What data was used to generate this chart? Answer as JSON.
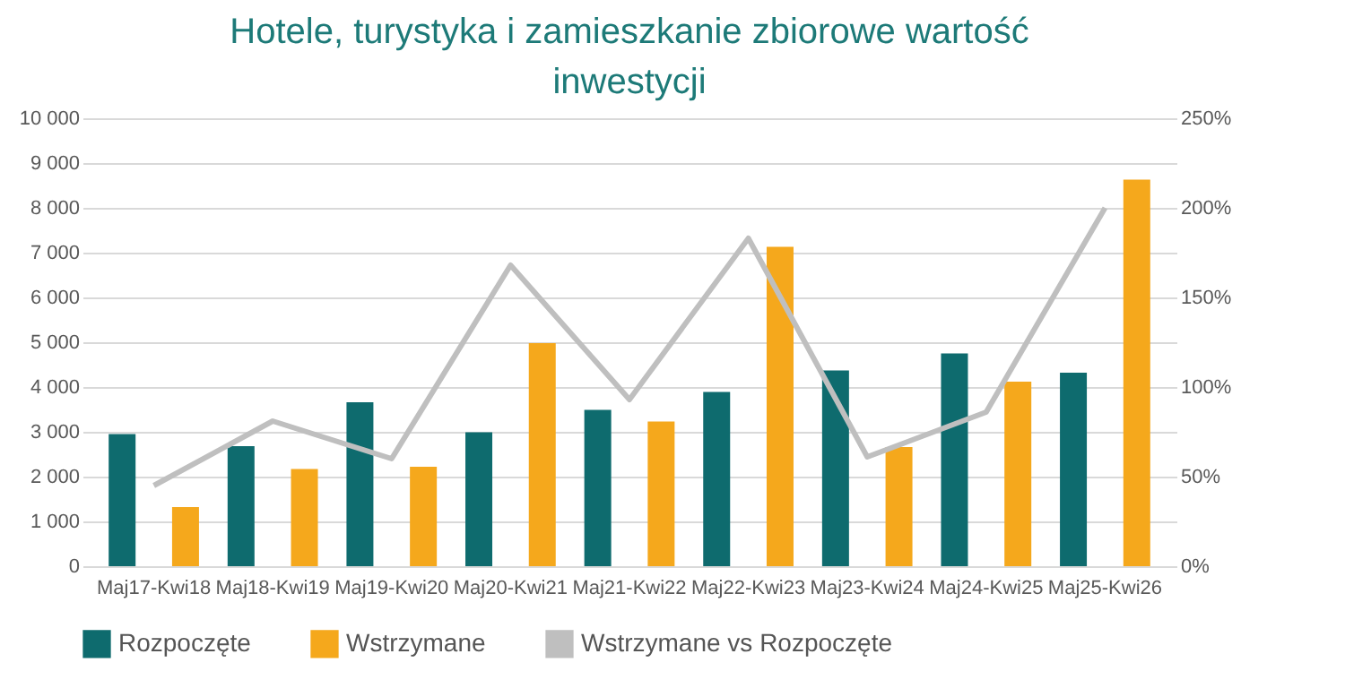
{
  "chart_data": {
    "type": "bar",
    "title": "Hotele, turystyka i zamieszkanie zbiorowe wartość inwestycji",
    "categories": [
      "Maj17-Kwi18",
      "Maj18-Kwi19",
      "Maj19-Kwi20",
      "Maj20-Kwi21",
      "Maj21-Kwi22",
      "Maj22-Kwi23",
      "Maj23-Kwi24",
      "Maj24-Kwi25",
      "Maj25-Kwi26"
    ],
    "series": [
      {
        "name": "Rozpoczęte",
        "color": "#0e6b6e",
        "values": [
          2950,
          2680,
          3660,
          2990,
          3490,
          3890,
          4370,
          4750,
          4320
        ]
      },
      {
        "name": "Wstrzymane",
        "color": "#f5a81c",
        "values": [
          1320,
          2170,
          2220,
          4980,
          3230,
          7130,
          2660,
          4120,
          8630
        ]
      },
      {
        "name": "Wstrzymane vs Rozpoczęte",
        "type": "line",
        "axis": "y2",
        "color": "#bfbfbf",
        "values": [
          45,
          81,
          60,
          168,
          93,
          183,
          61,
          86,
          200
        ]
      }
    ],
    "ylim": [
      0,
      10000
    ],
    "yticks": [
      0,
      {
        "value": 1000,
        "label": "1 000"
      },
      {
        "value": 2000,
        "label": "2 000"
      },
      {
        "value": 3000,
        "label": "3 000"
      },
      {
        "value": 4000,
        "label": "4 000"
      },
      {
        "value": 5000,
        "label": "5 000"
      },
      {
        "value": 6000,
        "label": "6 000"
      },
      {
        "value": 7000,
        "label": "7 000"
      },
      {
        "value": 8000,
        "label": "8 000"
      },
      {
        "value": 9000,
        "label": "9 000"
      },
      {
        "value": 10000,
        "label": "10 000"
      }
    ],
    "y2lim": [
      0,
      250
    ],
    "y2ticks": [
      {
        "value": 0,
        "label": "0%"
      },
      {
        "value": 50,
        "label": "50%"
      },
      {
        "value": 100,
        "label": "100%"
      },
      {
        "value": 150,
        "label": "150%"
      },
      {
        "value": 200,
        "label": "200%"
      },
      {
        "value": 250,
        "label": "250%"
      }
    ],
    "grid": "y",
    "legend": "bottom"
  }
}
